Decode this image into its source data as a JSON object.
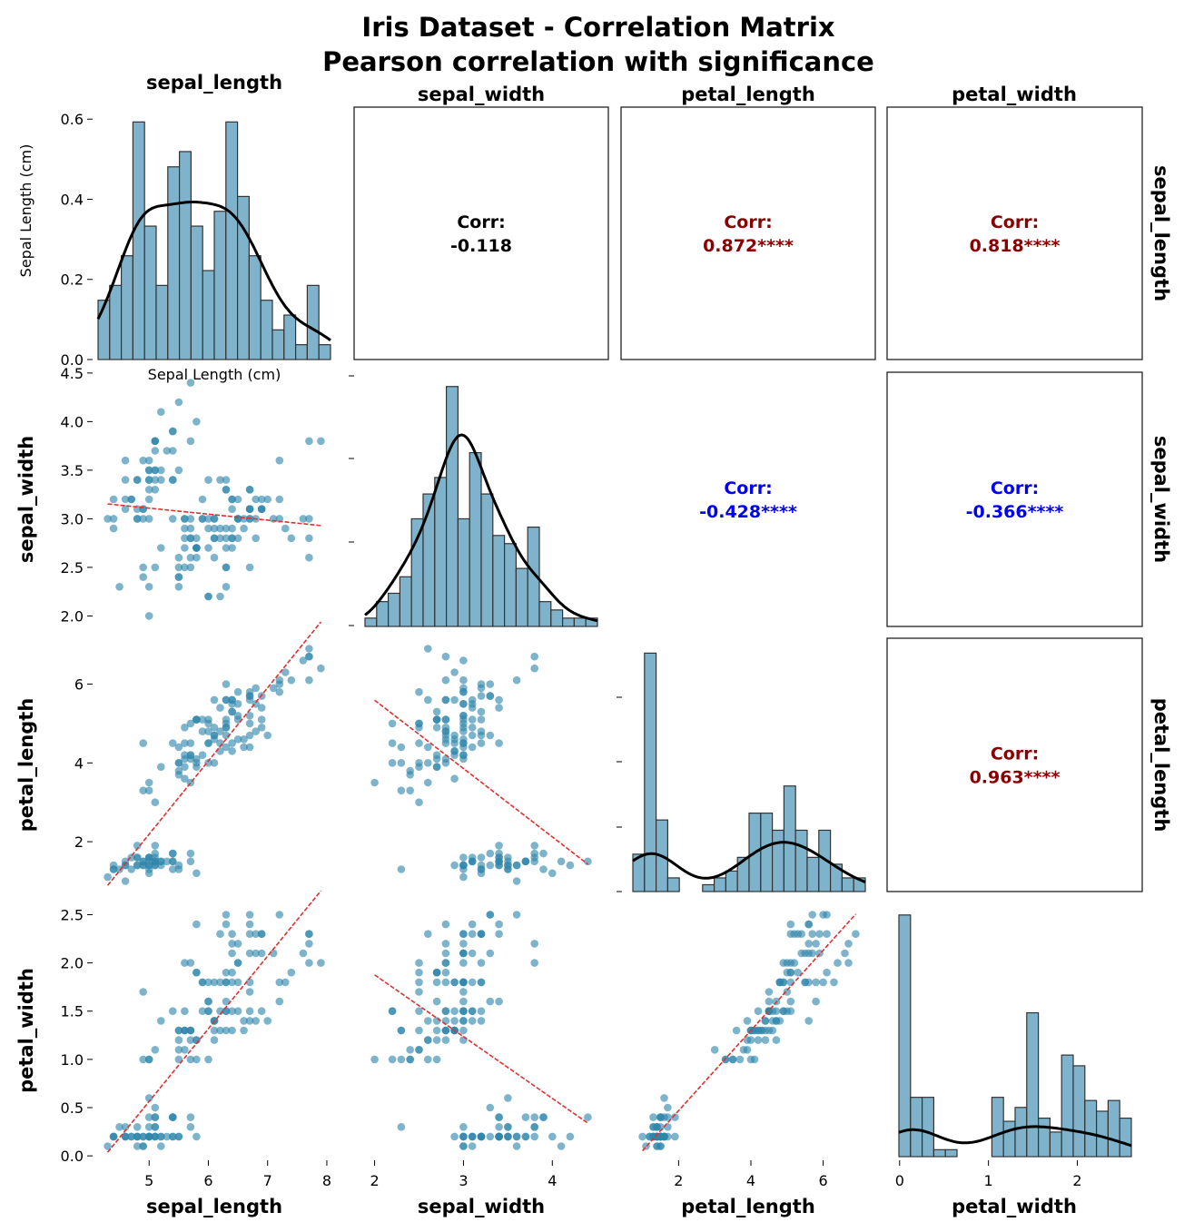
{
  "figure": {
    "title": "Iris Dataset - Correlation Matrix",
    "subtitle": "Pearson correlation with significance"
  },
  "variables": [
    "sepal_length",
    "sepal_width",
    "petal_length",
    "petal_width"
  ],
  "colors": {
    "points": "#2e86ab",
    "bars": "#7fb3cb",
    "bar_edge": "#333333",
    "kde": "#000000",
    "regression": "#e03030",
    "corr_strong_positive": "#8b0000",
    "corr_negative": "#0000ff",
    "corr_weak": "#000000"
  },
  "chart_data": {
    "type": "scatter",
    "title": "Iris Dataset - Correlation Matrix",
    "subtitle": "Pearson correlation with significance",
    "variables": [
      "sepal_length",
      "sepal_width",
      "petal_length",
      "petal_width"
    ],
    "top_left_ylabel": "Sepal Length (cm)",
    "top_left_xlabel_partial": "Sepal Length (cm)",
    "correlations": [
      {
        "row": "sepal_length",
        "col": "sepal_width",
        "prefix": "Corr:",
        "value": "-0.118",
        "color": "#000000"
      },
      {
        "row": "sepal_length",
        "col": "petal_length",
        "prefix": "Corr:",
        "value": "0.872****",
        "color": "#8b0000"
      },
      {
        "row": "sepal_length",
        "col": "petal_width",
        "prefix": "Corr:",
        "value": "0.818****",
        "color": "#8b0000"
      },
      {
        "row": "sepal_width",
        "col": "petal_length",
        "prefix": "Corr:",
        "value": "-0.428****",
        "color": "#0000ff"
      },
      {
        "row": "sepal_width",
        "col": "petal_width",
        "prefix": "Corr:",
        "value": "-0.366****",
        "color": "#0000ff"
      },
      {
        "row": "petal_length",
        "col": "petal_width",
        "prefix": "Corr:",
        "value": "0.963****",
        "color": "#8b0000"
      }
    ],
    "x_ticks": {
      "sepal_length": [
        "5",
        "6",
        "7",
        "8"
      ],
      "sepal_width": [
        "2",
        "3",
        "4"
      ],
      "petal_length": [
        "2",
        "4",
        "6"
      ],
      "petal_width": [
        "0",
        "1",
        "2"
      ]
    },
    "y_ticks": {
      "sepal_length_density": [
        "0.0",
        "0.2",
        "0.4",
        "0.6"
      ],
      "sepal_width": [
        "2.0",
        "2.5",
        "3.0",
        "3.5",
        "4.0",
        "4.5"
      ],
      "petal_length": [
        "2",
        "4",
        "6"
      ],
      "petal_width": [
        "0.0",
        "0.5",
        "1.0",
        "1.5",
        "2.0",
        "2.5"
      ]
    },
    "axis_ranges": {
      "sepal_length": [
        4.3,
        7.9
      ],
      "sepal_width": [
        2.0,
        4.4
      ],
      "petal_length": [
        1.0,
        6.9
      ],
      "petal_width": [
        0.1,
        2.5
      ]
    },
    "histogram_densities": {
      "sepal_length": [
        0.148,
        0.185,
        0.259,
        0.593,
        0.333,
        0.185,
        0.481,
        0.519,
        0.333,
        0.222,
        0.37,
        0.593,
        0.407,
        0.259,
        0.148,
        0.074,
        0.111,
        0.037,
        0.185,
        0.037
      ],
      "sepal_width": [
        0.042,
        0.125,
        0.167,
        0.25,
        0.542,
        0.667,
        0.75,
        1.208,
        0.542,
        0.875,
        0.667,
        0.458,
        0.417,
        0.292,
        0.5,
        0.125,
        0.083,
        0.042,
        0.042,
        0.042
      ],
      "petal_length": [
        0.186,
        1.186,
        0.356,
        0.068,
        0.0,
        0.0,
        0.034,
        0.068,
        0.102,
        0.17,
        0.39,
        0.39,
        0.305,
        0.525,
        0.305,
        0.17,
        0.305,
        0.136,
        0.068,
        0.068
      ],
      "petal_width": [
        3.83,
        0.94,
        0.94,
        0.11,
        0.11,
        0.0,
        0.0,
        0.0,
        0.94,
        0.56,
        0.78,
        2.28,
        0.61,
        0.39,
        1.61,
        1.44,
        0.89,
        0.72,
        0.89,
        0.61
      ]
    },
    "scatter_points": [
      [
        5.1,
        3.5,
        1.4,
        0.2
      ],
      [
        4.9,
        3.0,
        1.4,
        0.2
      ],
      [
        4.7,
        3.2,
        1.3,
        0.2
      ],
      [
        4.6,
        3.1,
        1.5,
        0.2
      ],
      [
        5.0,
        3.6,
        1.4,
        0.2
      ],
      [
        5.4,
        3.9,
        1.7,
        0.4
      ],
      [
        4.6,
        3.4,
        1.4,
        0.3
      ],
      [
        5.0,
        3.4,
        1.5,
        0.2
      ],
      [
        4.4,
        2.9,
        1.4,
        0.2
      ],
      [
        4.9,
        3.1,
        1.5,
        0.1
      ],
      [
        5.4,
        3.7,
        1.5,
        0.2
      ],
      [
        4.8,
        3.4,
        1.6,
        0.2
      ],
      [
        4.8,
        3.0,
        1.4,
        0.1
      ],
      [
        4.3,
        3.0,
        1.1,
        0.1
      ],
      [
        5.8,
        4.0,
        1.2,
        0.2
      ],
      [
        5.7,
        4.4,
        1.5,
        0.4
      ],
      [
        5.4,
        3.9,
        1.3,
        0.4
      ],
      [
        5.1,
        3.5,
        1.4,
        0.3
      ],
      [
        5.7,
        3.8,
        1.7,
        0.3
      ],
      [
        5.1,
        3.8,
        1.5,
        0.3
      ],
      [
        5.4,
        3.4,
        1.7,
        0.2
      ],
      [
        5.1,
        3.7,
        1.5,
        0.4
      ],
      [
        4.6,
        3.6,
        1.0,
        0.2
      ],
      [
        5.1,
        3.3,
        1.7,
        0.5
      ],
      [
        4.8,
        3.4,
        1.9,
        0.2
      ],
      [
        5.0,
        3.0,
        1.6,
        0.2
      ],
      [
        5.0,
        3.4,
        1.6,
        0.4
      ],
      [
        5.2,
        3.5,
        1.5,
        0.2
      ],
      [
        5.2,
        3.4,
        1.4,
        0.2
      ],
      [
        4.7,
        3.2,
        1.6,
        0.2
      ],
      [
        4.8,
        3.1,
        1.6,
        0.2
      ],
      [
        5.4,
        3.4,
        1.5,
        0.4
      ],
      [
        5.2,
        4.1,
        1.5,
        0.1
      ],
      [
        5.5,
        4.2,
        1.4,
        0.2
      ],
      [
        4.9,
        3.1,
        1.5,
        0.2
      ],
      [
        5.0,
        3.2,
        1.2,
        0.2
      ],
      [
        5.5,
        3.5,
        1.3,
        0.2
      ],
      [
        4.9,
        3.6,
        1.4,
        0.1
      ],
      [
        4.4,
        3.0,
        1.3,
        0.2
      ],
      [
        5.1,
        3.4,
        1.5,
        0.2
      ],
      [
        5.0,
        3.5,
        1.3,
        0.3
      ],
      [
        4.5,
        2.3,
        1.3,
        0.3
      ],
      [
        4.4,
        3.2,
        1.3,
        0.2
      ],
      [
        5.0,
        3.5,
        1.6,
        0.6
      ],
      [
        5.1,
        3.8,
        1.9,
        0.4
      ],
      [
        4.8,
        3.0,
        1.4,
        0.3
      ],
      [
        5.1,
        3.8,
        1.6,
        0.2
      ],
      [
        4.6,
        3.2,
        1.4,
        0.2
      ],
      [
        5.3,
        3.7,
        1.5,
        0.2
      ],
      [
        5.0,
        3.3,
        1.4,
        0.2
      ],
      [
        7.0,
        3.2,
        4.7,
        1.4
      ],
      [
        6.4,
        3.2,
        4.5,
        1.5
      ],
      [
        6.9,
        3.1,
        4.9,
        1.5
      ],
      [
        5.5,
        2.3,
        4.0,
        1.3
      ],
      [
        6.5,
        2.8,
        4.6,
        1.5
      ],
      [
        5.7,
        2.8,
        4.5,
        1.3
      ],
      [
        6.3,
        3.3,
        4.7,
        1.6
      ],
      [
        4.9,
        2.4,
        3.3,
        1.0
      ],
      [
        6.6,
        2.9,
        4.6,
        1.3
      ],
      [
        5.2,
        2.7,
        3.9,
        1.4
      ],
      [
        5.0,
        2.0,
        3.5,
        1.0
      ],
      [
        5.9,
        3.0,
        4.2,
        1.5
      ],
      [
        6.0,
        2.2,
        4.0,
        1.0
      ],
      [
        6.1,
        2.9,
        4.7,
        1.4
      ],
      [
        5.6,
        2.9,
        3.6,
        1.3
      ],
      [
        6.7,
        3.1,
        4.4,
        1.4
      ],
      [
        5.6,
        3.0,
        4.5,
        1.5
      ],
      [
        5.8,
        2.7,
        4.1,
        1.0
      ],
      [
        6.2,
        2.2,
        4.5,
        1.5
      ],
      [
        5.6,
        2.5,
        3.9,
        1.1
      ],
      [
        5.9,
        3.2,
        4.8,
        1.8
      ],
      [
        6.1,
        2.8,
        4.0,
        1.3
      ],
      [
        6.3,
        2.5,
        4.9,
        1.5
      ],
      [
        6.1,
        2.8,
        4.7,
        1.2
      ],
      [
        6.4,
        2.9,
        4.3,
        1.3
      ],
      [
        6.6,
        3.0,
        4.4,
        1.4
      ],
      [
        6.8,
        2.8,
        4.8,
        1.4
      ],
      [
        6.7,
        3.0,
        5.0,
        1.7
      ],
      [
        6.0,
        2.9,
        4.5,
        1.5
      ],
      [
        5.7,
        2.6,
        3.5,
        1.0
      ],
      [
        5.5,
        2.4,
        3.8,
        1.1
      ],
      [
        5.5,
        2.4,
        3.7,
        1.0
      ],
      [
        5.8,
        2.7,
        3.9,
        1.2
      ],
      [
        6.0,
        2.7,
        5.1,
        1.6
      ],
      [
        5.4,
        3.0,
        4.5,
        1.5
      ],
      [
        6.0,
        3.4,
        4.5,
        1.6
      ],
      [
        6.7,
        3.1,
        4.7,
        1.5
      ],
      [
        6.3,
        2.3,
        4.4,
        1.3
      ],
      [
        5.6,
        3.0,
        4.1,
        1.3
      ],
      [
        5.5,
        2.5,
        4.0,
        1.3
      ],
      [
        5.5,
        2.6,
        4.4,
        1.2
      ],
      [
        6.1,
        3.0,
        4.6,
        1.4
      ],
      [
        5.8,
        2.6,
        4.0,
        1.2
      ],
      [
        5.0,
        2.3,
        3.3,
        1.0
      ],
      [
        5.6,
        2.7,
        4.2,
        1.3
      ],
      [
        5.7,
        3.0,
        4.2,
        1.2
      ],
      [
        5.7,
        2.9,
        4.2,
        1.3
      ],
      [
        6.2,
        2.9,
        4.3,
        1.3
      ],
      [
        5.1,
        2.5,
        3.0,
        1.1
      ],
      [
        5.7,
        2.8,
        4.1,
        1.3
      ],
      [
        6.3,
        3.3,
        6.0,
        2.5
      ],
      [
        5.8,
        2.7,
        5.1,
        1.9
      ],
      [
        7.1,
        3.0,
        5.9,
        2.1
      ],
      [
        6.3,
        2.9,
        5.6,
        1.8
      ],
      [
        6.5,
        3.0,
        5.8,
        2.2
      ],
      [
        7.6,
        3.0,
        6.6,
        2.1
      ],
      [
        4.9,
        2.5,
        4.5,
        1.7
      ],
      [
        7.3,
        2.9,
        6.3,
        1.8
      ],
      [
        6.7,
        2.5,
        5.8,
        1.8
      ],
      [
        7.2,
        3.6,
        6.1,
        2.5
      ],
      [
        6.5,
        3.2,
        5.1,
        2.0
      ],
      [
        6.4,
        2.7,
        5.3,
        1.9
      ],
      [
        6.8,
        3.0,
        5.5,
        2.1
      ],
      [
        5.7,
        2.5,
        5.0,
        2.0
      ],
      [
        5.8,
        2.8,
        5.1,
        2.4
      ],
      [
        6.4,
        3.2,
        5.3,
        2.3
      ],
      [
        6.5,
        3.0,
        5.5,
        1.8
      ],
      [
        7.7,
        3.8,
        6.7,
        2.2
      ],
      [
        7.7,
        2.6,
        6.9,
        2.3
      ],
      [
        6.0,
        2.2,
        5.0,
        1.5
      ],
      [
        6.9,
        3.2,
        5.7,
        2.3
      ],
      [
        5.6,
        2.8,
        4.9,
        2.0
      ],
      [
        7.7,
        2.8,
        6.7,
        2.0
      ],
      [
        6.3,
        2.7,
        4.9,
        1.8
      ],
      [
        6.7,
        3.3,
        5.7,
        2.1
      ],
      [
        7.2,
        3.2,
        6.0,
        1.8
      ],
      [
        6.2,
        2.8,
        4.8,
        1.8
      ],
      [
        6.1,
        3.0,
        4.9,
        1.8
      ],
      [
        6.4,
        2.8,
        5.6,
        2.1
      ],
      [
        7.2,
        3.0,
        5.8,
        1.6
      ],
      [
        7.4,
        2.8,
        6.1,
        1.9
      ],
      [
        7.9,
        3.8,
        6.4,
        2.0
      ],
      [
        6.4,
        2.8,
        5.6,
        2.2
      ],
      [
        6.3,
        2.8,
        5.1,
        1.5
      ],
      [
        6.1,
        2.6,
        5.6,
        1.4
      ],
      [
        7.7,
        3.0,
        6.1,
        2.3
      ],
      [
        6.3,
        3.4,
        5.6,
        2.4
      ],
      [
        6.4,
        3.1,
        5.5,
        1.8
      ],
      [
        6.0,
        3.0,
        4.8,
        1.8
      ],
      [
        6.9,
        3.1,
        5.4,
        2.1
      ],
      [
        6.7,
        3.1,
        5.6,
        2.4
      ],
      [
        6.9,
        3.1,
        5.1,
        2.3
      ],
      [
        5.8,
        2.7,
        5.1,
        1.9
      ],
      [
        6.8,
        3.2,
        5.9,
        2.3
      ],
      [
        6.7,
        3.3,
        5.7,
        2.5
      ],
      [
        6.7,
        3.0,
        5.2,
        2.3
      ],
      [
        6.3,
        2.5,
        5.0,
        1.9
      ],
      [
        6.5,
        3.0,
        5.2,
        2.0
      ],
      [
        6.2,
        3.4,
        5.4,
        2.3
      ],
      [
        5.9,
        3.0,
        5.1,
        1.8
      ]
    ]
  }
}
